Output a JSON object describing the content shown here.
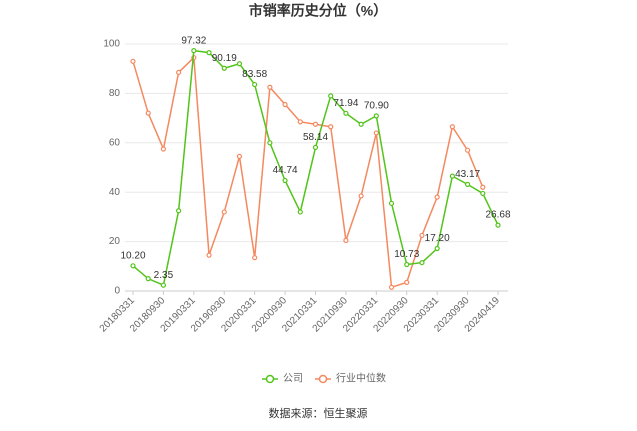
{
  "chart_data": {
    "type": "line",
    "title": "市销率历史分位（%）",
    "categories": [
      "20180331",
      null,
      "20180930",
      null,
      "20190331",
      null,
      "20190930",
      null,
      "20200331",
      null,
      "20200930",
      null,
      "20210331",
      null,
      "20210930",
      null,
      "20220331",
      null,
      "20220930",
      null,
      "20230331",
      null,
      "20230930",
      null,
      "20240419"
    ],
    "series": [
      {
        "name": "公司",
        "color": "#52c41a",
        "values": [
          10.2,
          5,
          2.35,
          32.5,
          97.32,
          96.5,
          90.19,
          92,
          83.58,
          60,
          44.74,
          32,
          58.14,
          79,
          71.94,
          67.5,
          70.9,
          35.5,
          10.73,
          11.5,
          17.2,
          46.5,
          43.17,
          39.5,
          26.68
        ],
        "value_labels": [
          "10.20",
          null,
          "2.35",
          null,
          "97.32",
          null,
          "90.19",
          null,
          "83.58",
          null,
          "44.74",
          null,
          "58.14",
          null,
          "71.94",
          null,
          "70.90",
          null,
          "10.73",
          null,
          "17.20",
          null,
          "43.17",
          null,
          "26.68"
        ]
      },
      {
        "name": "行业中位数",
        "color": "#f4895f",
        "values": [
          93,
          72,
          57.5,
          88.5,
          94.5,
          14.5,
          32,
          54.5,
          13.5,
          82.5,
          75.5,
          68.5,
          67.5,
          66.5,
          20.5,
          38.5,
          64,
          1.5,
          3.5,
          22.5,
          38,
          66.5,
          57,
          42,
          null
        ]
      }
    ],
    "ylim": [
      0,
      100
    ],
    "yticks": [
      0,
      20,
      40,
      60,
      80,
      100
    ],
    "grid": true,
    "source": "数据来源：恒生聚源"
  }
}
